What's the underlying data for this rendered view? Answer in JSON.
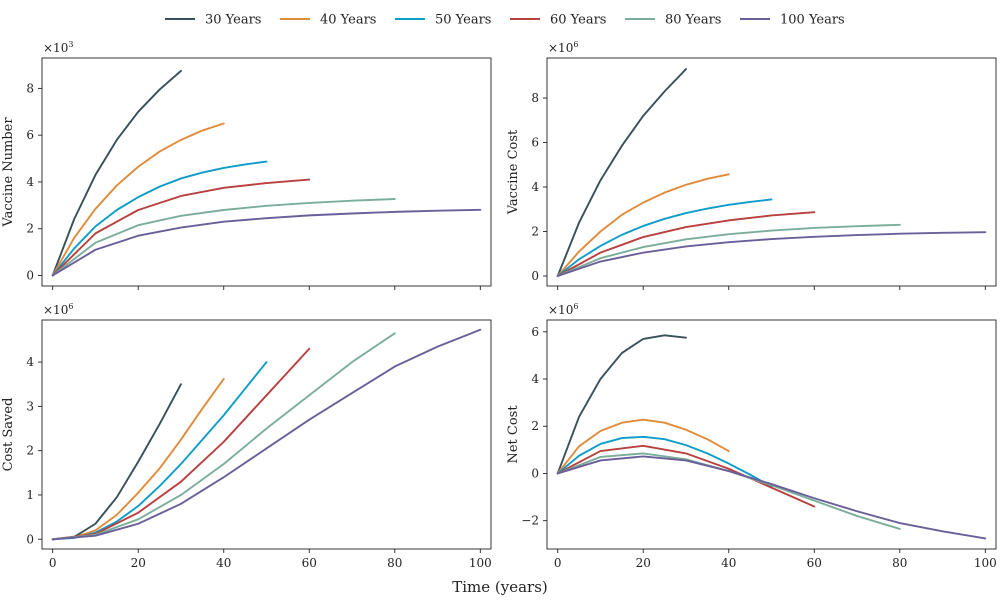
{
  "chart_data": {
    "type": "line",
    "xlabel": "Time (years)",
    "legend": {
      "placement": "top-center",
      "entries": [
        "30 Years",
        "40 Years",
        "50 Years",
        "60 Years",
        "80 Years",
        "100 Years"
      ]
    },
    "series_colors": [
      "#37505c",
      "#e08b3a",
      "#0e9cc9",
      "#b8403f",
      "#7bae99",
      "#6b5f99"
    ],
    "panels": [
      {
        "id": "vaccine-number",
        "ylabel": "Vaccine Number",
        "multiplier": "×10",
        "exponent": "3",
        "xticks": [
          0,
          20,
          40,
          60,
          80,
          100
        ],
        "yticks": [
          0,
          2,
          4,
          6,
          8
        ],
        "xlim": [
          -2.5,
          102.5
        ],
        "ylim": [
          -0.45,
          9.3
        ],
        "series": [
          {
            "name": "30 Years",
            "x": [
              0,
              5,
              10,
              15,
              20,
              25,
              30
            ],
            "y": [
              0,
              2.4,
              4.3,
              5.8,
              7.0,
              7.95,
              8.75
            ]
          },
          {
            "name": "40 Years",
            "x": [
              0,
              5,
              10,
              15,
              20,
              25,
              30,
              35,
              40
            ],
            "y": [
              0,
              1.6,
              2.85,
              3.85,
              4.65,
              5.3,
              5.8,
              6.2,
              6.5
            ]
          },
          {
            "name": "50 Years",
            "x": [
              0,
              5,
              10,
              15,
              20,
              25,
              30,
              35,
              40,
              45,
              50
            ],
            "y": [
              0,
              1.15,
              2.1,
              2.8,
              3.35,
              3.8,
              4.15,
              4.4,
              4.6,
              4.75,
              4.87
            ]
          },
          {
            "name": "60 Years",
            "x": [
              0,
              10,
              20,
              30,
              40,
              50,
              60
            ],
            "y": [
              0,
              1.8,
              2.8,
              3.4,
              3.75,
              3.95,
              4.1
            ]
          },
          {
            "name": "80 Years",
            "x": [
              0,
              10,
              20,
              30,
              40,
              50,
              60,
              70,
              80
            ],
            "y": [
              0,
              1.4,
              2.15,
              2.55,
              2.8,
              2.98,
              3.1,
              3.2,
              3.27
            ]
          },
          {
            "name": "100 Years",
            "x": [
              0,
              10,
              20,
              30,
              40,
              50,
              60,
              70,
              80,
              90,
              100
            ],
            "y": [
              0,
              1.1,
              1.7,
              2.05,
              2.3,
              2.45,
              2.57,
              2.65,
              2.72,
              2.77,
              2.81
            ]
          }
        ]
      },
      {
        "id": "vaccine-cost",
        "ylabel": "Vaccine Cost",
        "multiplier": "×10",
        "exponent": "6",
        "xticks": [
          0,
          20,
          40,
          60,
          80,
          100
        ],
        "yticks": [
          0,
          2,
          4,
          6,
          8
        ],
        "xlim": [
          -2.5,
          102.5
        ],
        "ylim": [
          -0.45,
          9.8
        ],
        "series": [
          {
            "name": "30 Years",
            "x": [
              0,
              5,
              10,
              15,
              20,
              25,
              30
            ],
            "y": [
              0,
              2.4,
              4.3,
              5.85,
              7.2,
              8.3,
              9.3
            ]
          },
          {
            "name": "40 Years",
            "x": [
              0,
              5,
              10,
              15,
              20,
              25,
              30,
              35,
              40
            ],
            "y": [
              0,
              1.1,
              2.0,
              2.75,
              3.3,
              3.75,
              4.1,
              4.37,
              4.57
            ]
          },
          {
            "name": "50 Years",
            "x": [
              0,
              5,
              10,
              15,
              20,
              25,
              30,
              35,
              40,
              45,
              50
            ],
            "y": [
              0,
              0.75,
              1.35,
              1.85,
              2.25,
              2.57,
              2.83,
              3.03,
              3.2,
              3.33,
              3.44
            ]
          },
          {
            "name": "60 Years",
            "x": [
              0,
              10,
              20,
              30,
              40,
              50,
              60
            ],
            "y": [
              0,
              1.05,
              1.75,
              2.2,
              2.5,
              2.72,
              2.87
            ]
          },
          {
            "name": "80 Years",
            "x": [
              0,
              10,
              20,
              30,
              40,
              50,
              60,
              70,
              80
            ],
            "y": [
              0,
              0.8,
              1.3,
              1.65,
              1.88,
              2.04,
              2.16,
              2.24,
              2.3
            ]
          },
          {
            "name": "100 Years",
            "x": [
              0,
              10,
              20,
              30,
              40,
              50,
              60,
              70,
              80,
              90,
              100
            ],
            "y": [
              0,
              0.65,
              1.05,
              1.33,
              1.52,
              1.66,
              1.76,
              1.84,
              1.9,
              1.94,
              1.97
            ]
          }
        ]
      },
      {
        "id": "cost-saved",
        "ylabel": "Cost Saved",
        "multiplier": "×10",
        "exponent": "6",
        "xticks": [
          0,
          20,
          40,
          60,
          80,
          100
        ],
        "yticks": [
          0,
          1,
          2,
          3,
          4
        ],
        "xlim": [
          -2.5,
          102.5
        ],
        "ylim": [
          -0.22,
          4.95
        ],
        "series": [
          {
            "name": "30 Years",
            "x": [
              0,
              5,
              10,
              15,
              20,
              25,
              30
            ],
            "y": [
              0,
              0.05,
              0.35,
              0.95,
              1.75,
              2.6,
              3.5
            ]
          },
          {
            "name": "40 Years",
            "x": [
              0,
              5,
              10,
              15,
              20,
              25,
              30,
              35,
              40
            ],
            "y": [
              0,
              0.04,
              0.2,
              0.55,
              1.05,
              1.6,
              2.25,
              2.95,
              3.62
            ]
          },
          {
            "name": "50 Years",
            "x": [
              0,
              5,
              10,
              15,
              20,
              25,
              30,
              35,
              40,
              45,
              50
            ],
            "y": [
              0,
              0.03,
              0.15,
              0.4,
              0.75,
              1.2,
              1.7,
              2.25,
              2.8,
              3.4,
              4.0
            ]
          },
          {
            "name": "60 Years",
            "x": [
              0,
              10,
              20,
              30,
              40,
              50,
              60
            ],
            "y": [
              0,
              0.12,
              0.6,
              1.3,
              2.2,
              3.25,
              4.3
            ]
          },
          {
            "name": "80 Years",
            "x": [
              0,
              10,
              20,
              30,
              40,
              50,
              60,
              70,
              80
            ],
            "y": [
              0,
              0.1,
              0.45,
              1.0,
              1.7,
              2.5,
              3.25,
              4.0,
              4.65
            ]
          },
          {
            "name": "100 Years",
            "x": [
              0,
              10,
              20,
              30,
              40,
              50,
              60,
              70,
              80,
              90,
              100
            ],
            "y": [
              0,
              0.08,
              0.35,
              0.8,
              1.4,
              2.05,
              2.7,
              3.3,
              3.9,
              4.35,
              4.73
            ]
          }
        ]
      },
      {
        "id": "net-cost",
        "ylabel": "Net Cost",
        "multiplier": "×10",
        "exponent": "6",
        "xticks": [
          0,
          20,
          40,
          60,
          80,
          100
        ],
        "yticks": [
          -2,
          0,
          2,
          4,
          6
        ],
        "xlim": [
          -2.5,
          102.5
        ],
        "ylim": [
          -3.2,
          6.5
        ],
        "series": [
          {
            "name": "30 Years",
            "x": [
              0,
              5,
              10,
              15,
              20,
              25,
              30
            ],
            "y": [
              0,
              2.4,
              4.0,
              5.1,
              5.7,
              5.85,
              5.75
            ]
          },
          {
            "name": "40 Years",
            "x": [
              0,
              5,
              10,
              15,
              20,
              25,
              30,
              35,
              40
            ],
            "y": [
              0,
              1.15,
              1.8,
              2.15,
              2.28,
              2.15,
              1.85,
              1.45,
              0.95
            ]
          },
          {
            "name": "50 Years",
            "x": [
              0,
              5,
              10,
              15,
              20,
              25,
              30,
              35,
              40,
              45,
              50
            ],
            "y": [
              0,
              0.75,
              1.25,
              1.5,
              1.55,
              1.45,
              1.2,
              0.85,
              0.42,
              -0.05,
              -0.56
            ]
          },
          {
            "name": "60 Years",
            "x": [
              0,
              10,
              20,
              30,
              40,
              50,
              60
            ],
            "y": [
              0,
              0.95,
              1.17,
              0.85,
              0.2,
              -0.6,
              -1.4
            ]
          },
          {
            "name": "80 Years",
            "x": [
              0,
              10,
              20,
              30,
              40,
              50,
              60,
              70,
              80
            ],
            "y": [
              0,
              0.7,
              0.85,
              0.6,
              0.1,
              -0.5,
              -1.15,
              -1.8,
              -2.35
            ]
          },
          {
            "name": "100 Years",
            "x": [
              0,
              10,
              20,
              30,
              40,
              50,
              60,
              70,
              80,
              90,
              100
            ],
            "y": [
              0,
              0.55,
              0.72,
              0.55,
              0.1,
              -0.45,
              -1.05,
              -1.6,
              -2.1,
              -2.45,
              -2.75
            ]
          }
        ]
      }
    ]
  }
}
